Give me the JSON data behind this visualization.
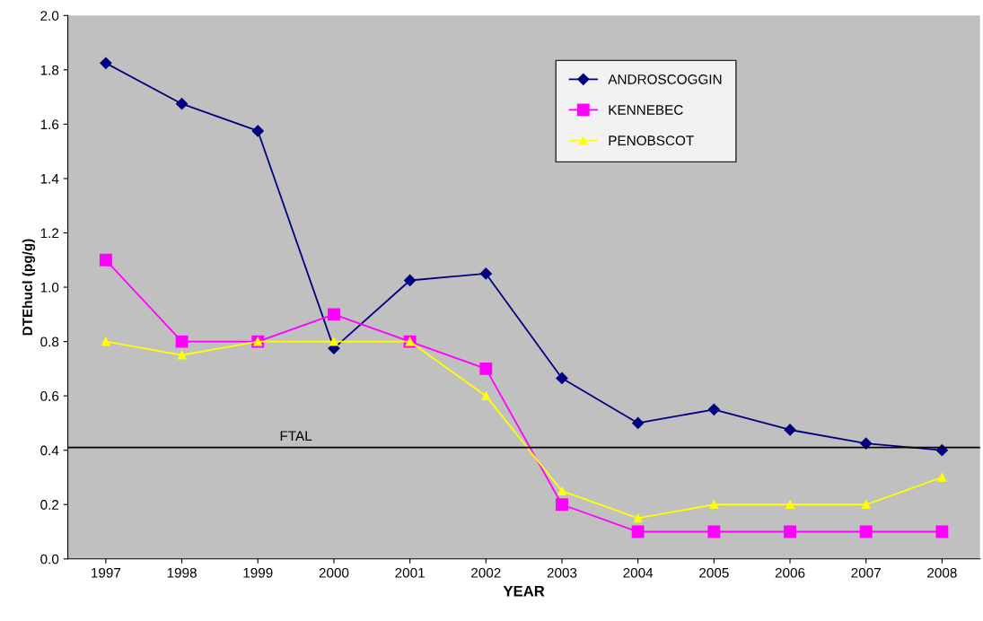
{
  "chart_data": {
    "type": "line",
    "xlabel": "YEAR",
    "ylabel": "DTEhucl (pg/g)",
    "categories": [
      "1997",
      "1998",
      "1999",
      "2000",
      "2001",
      "2002",
      "2003",
      "2004",
      "2005",
      "2006",
      "2007",
      "2008"
    ],
    "series": [
      {
        "name": "ANDROSCOGGIN",
        "color": "#000080",
        "marker": "diamond",
        "values": [
          1.825,
          1.675,
          1.575,
          0.775,
          1.025,
          1.05,
          0.665,
          0.5,
          0.55,
          0.475,
          0.425,
          0.4
        ]
      },
      {
        "name": "KENNEBEC",
        "color": "#ff00ff",
        "marker": "square",
        "values": [
          1.1,
          0.8,
          0.8,
          0.9,
          0.8,
          0.7,
          0.2,
          0.1,
          0.1,
          0.1,
          0.1,
          0.1
        ]
      },
      {
        "name": "PENOBSCOT",
        "color": "#ffff00",
        "marker": "triangle",
        "values": [
          0.8,
          0.75,
          0.8,
          0.8,
          0.8,
          0.6,
          0.25,
          0.15,
          0.2,
          0.2,
          0.2,
          0.3
        ]
      }
    ],
    "ylim": [
      0,
      2.0
    ],
    "yticks": [
      {
        "value": 0,
        "label": "0.0"
      },
      {
        "value": 0.2,
        "label": "0.2"
      },
      {
        "value": 0.4,
        "label": "0.4"
      },
      {
        "value": 0.6,
        "label": "0.6"
      },
      {
        "value": 0.8,
        "label": "0.8"
      },
      {
        "value": 1.0,
        "label": "1.0"
      },
      {
        "value": 1.2,
        "label": "1.2"
      },
      {
        "value": 1.4,
        "label": "1.4"
      },
      {
        "value": 1.6,
        "label": "1.6"
      },
      {
        "value": 1.8,
        "label": "1.8"
      },
      {
        "value": 2.0,
        "label": "2.0"
      }
    ],
    "ref_lines": [
      {
        "axis": "y",
        "value": 0.41,
        "label": "FTAL",
        "color": "#000000"
      }
    ],
    "grid": false,
    "legend": "top right",
    "line_style": "solid"
  }
}
